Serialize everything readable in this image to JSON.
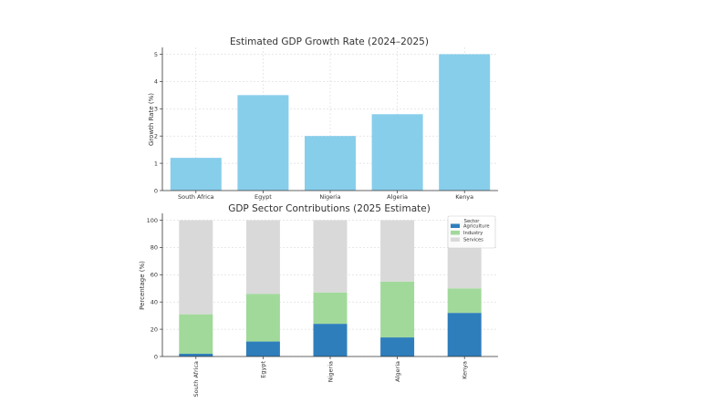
{
  "chart_data": [
    {
      "type": "bar",
      "title": "Estimated GDP Growth Rate (2024–2025)",
      "xlabel": "",
      "ylabel": "Growth Rate (%)",
      "categories": [
        "South Africa",
        "Egypt",
        "Nigeria",
        "Algeria",
        "Kenya"
      ],
      "values": [
        1.2,
        3.5,
        2.0,
        2.8,
        5.0
      ],
      "ylim": [
        0,
        5.25
      ],
      "yticks": [
        0,
        1,
        2,
        3,
        4,
        5
      ],
      "grid": true,
      "color": "#87CEEB"
    },
    {
      "type": "bar",
      "stacked": true,
      "title": "GDP Sector Contributions (2025 Estimate)",
      "xlabel": "",
      "ylabel": "Percentage (%)",
      "categories": [
        "South Africa",
        "Egypt",
        "Nigeria",
        "Algeria",
        "Kenya"
      ],
      "series": [
        {
          "name": "Agriculture",
          "values": [
            2,
            11,
            24,
            14,
            32
          ],
          "color": "#2F7EBC"
        },
        {
          "name": "Industry",
          "values": [
            29,
            35,
            23,
            41,
            18
          ],
          "color": "#A1D99B"
        },
        {
          "name": "Services",
          "values": [
            69,
            54,
            53,
            45,
            50
          ],
          "color": "#D9D9D9"
        }
      ],
      "ylim": [
        0,
        105
      ],
      "yticks": [
        0,
        20,
        40,
        60,
        80,
        100
      ],
      "grid": true,
      "legend": {
        "title": "Sector",
        "placement": "top-right"
      }
    }
  ]
}
